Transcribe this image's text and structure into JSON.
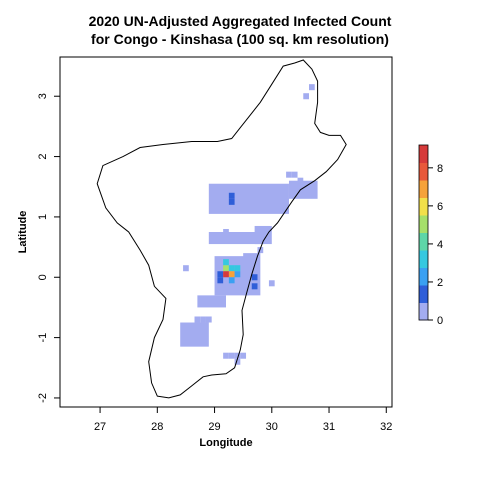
{
  "chart_data": {
    "type": "heatmap",
    "title_line1": "2020 UN-Adjusted Aggregated Infected Count",
    "title_line2": "for Congo - Kinshasa (100 sq. km resolution)",
    "xlabel": "Longitude",
    "ylabel": "Latitude",
    "xlim": [
      26.3,
      32.1
    ],
    "ylim": [
      -2.15,
      3.65
    ],
    "xticks": [
      {
        "value": 27,
        "label": "27"
      },
      {
        "value": 28,
        "label": "28"
      },
      {
        "value": 29,
        "label": "29"
      },
      {
        "value": 30,
        "label": "30"
      },
      {
        "value": 31,
        "label": "31"
      },
      {
        "value": 32,
        "label": "32"
      }
    ],
    "yticks": [
      {
        "value": -2,
        "label": "-2"
      },
      {
        "value": -1,
        "label": "-1"
      },
      {
        "value": 0,
        "label": "0"
      },
      {
        "value": 1,
        "label": "1"
      },
      {
        "value": 2,
        "label": "2"
      },
      {
        "value": 3,
        "label": "3"
      }
    ],
    "colorbar": {
      "range": [
        0,
        9.2
      ],
      "colors": [
        "#a3acf0",
        "#2f5ed8",
        "#3aa0f2",
        "#35c8e0",
        "#5ed6a8",
        "#a6e06a",
        "#f2e04a",
        "#f5a23a",
        "#e8583a",
        "#d63a3a"
      ],
      "ticks": [
        {
          "value": 0,
          "label": "0"
        },
        {
          "value": 2,
          "label": "2"
        },
        {
          "value": 4,
          "label": "4"
        },
        {
          "value": 6,
          "label": "6"
        },
        {
          "value": 8,
          "label": "8"
        }
      ]
    },
    "cells_low_count": [
      [
        30.7,
        3.15
      ],
      [
        30.6,
        3.0
      ],
      [
        30.3,
        1.7
      ],
      [
        30.4,
        1.7
      ],
      [
        30.5,
        1.6
      ],
      [
        30.6,
        1.5
      ],
      [
        30.7,
        1.5
      ],
      [
        29.2,
        0.75
      ],
      [
        29.8,
        0.45
      ],
      [
        28.5,
        0.15
      ],
      [
        30.0,
        -0.1
      ],
      [
        28.7,
        -0.7
      ],
      [
        28.8,
        -0.7
      ],
      [
        28.9,
        -0.7
      ],
      [
        29.2,
        -1.3
      ],
      [
        29.3,
        -1.3
      ],
      [
        29.4,
        -1.3
      ],
      [
        29.5,
        -1.3
      ],
      [
        29.4,
        -1.4
      ]
    ],
    "cell_blocks_low_count": [
      {
        "lon": [
          28.9,
          30.3
        ],
        "lat": [
          1.05,
          1.55
        ]
      },
      {
        "lon": [
          30.3,
          30.8
        ],
        "lat": [
          1.3,
          1.6
        ]
      },
      {
        "lon": [
          28.9,
          29.8
        ],
        "lat": [
          0.55,
          0.75
        ]
      },
      {
        "lon": [
          29.7,
          30.0
        ],
        "lat": [
          0.55,
          0.85
        ]
      },
      {
        "lon": [
          29.0,
          29.6
        ],
        "lat": [
          -0.3,
          0.35
        ]
      },
      {
        "lon": [
          28.7,
          29.2
        ],
        "lat": [
          -0.5,
          -0.3
        ]
      },
      {
        "lon": [
          29.5,
          29.8
        ],
        "lat": [
          -0.3,
          0.4
        ]
      },
      {
        "lon": [
          28.4,
          28.9
        ],
        "lat": [
          -1.15,
          -0.75
        ]
      }
    ],
    "cells_colored": [
      {
        "lon": 29.3,
        "lat": 1.25,
        "value": 1.5
      },
      {
        "lon": 29.3,
        "lat": 1.35,
        "value": 1.5
      },
      {
        "lon": 29.1,
        "lat": 0.05,
        "value": 1.5
      },
      {
        "lon": 29.1,
        "lat": -0.05,
        "value": 1.5
      },
      {
        "lon": 29.2,
        "lat": 0.15,
        "value": 5
      },
      {
        "lon": 29.3,
        "lat": 0.15,
        "value": 3
      },
      {
        "lon": 29.4,
        "lat": 0.15,
        "value": 3
      },
      {
        "lon": 29.2,
        "lat": 0.25,
        "value": 3
      },
      {
        "lon": 29.3,
        "lat": 0.05,
        "value": 6.5
      },
      {
        "lon": 29.2,
        "lat": 0.05,
        "value": 8.7
      },
      {
        "lon": 29.4,
        "lat": 0.05,
        "value": 2.5
      },
      {
        "lon": 29.3,
        "lat": -0.05,
        "value": 2.5
      },
      {
        "lon": 29.7,
        "lat": 0.0,
        "value": 1.5
      },
      {
        "lon": 29.7,
        "lat": -0.15,
        "value": 1.5
      }
    ],
    "boundary": [
      [
        28.0,
        -1.97
      ],
      [
        28.2,
        -2.0
      ],
      [
        28.4,
        -1.95
      ],
      [
        28.6,
        -1.8
      ],
      [
        28.8,
        -1.65
      ],
      [
        28.95,
        -1.62
      ],
      [
        29.2,
        -1.6
      ],
      [
        29.35,
        -1.5
      ],
      [
        29.45,
        -1.2
      ],
      [
        29.5,
        -0.95
      ],
      [
        29.48,
        -0.55
      ],
      [
        29.55,
        -0.3
      ],
      [
        29.65,
        0.05
      ],
      [
        29.75,
        0.35
      ],
      [
        29.85,
        0.6
      ],
      [
        29.95,
        0.75
      ],
      [
        30.1,
        0.9
      ],
      [
        30.35,
        1.25
      ],
      [
        30.5,
        1.45
      ],
      [
        30.75,
        1.6
      ],
      [
        30.95,
        1.75
      ],
      [
        31.15,
        1.95
      ],
      [
        31.3,
        2.2
      ],
      [
        31.2,
        2.35
      ],
      [
        31.0,
        2.35
      ],
      [
        30.85,
        2.4
      ],
      [
        30.75,
        2.55
      ],
      [
        30.8,
        2.9
      ],
      [
        30.8,
        3.25
      ],
      [
        30.7,
        3.45
      ],
      [
        30.55,
        3.6
      ],
      [
        30.4,
        3.55
      ],
      [
        30.2,
        3.5
      ],
      [
        30.0,
        3.2
      ],
      [
        29.8,
        2.9
      ],
      [
        29.55,
        2.6
      ],
      [
        29.3,
        2.3
      ],
      [
        29.05,
        2.25
      ],
      [
        28.6,
        2.25
      ],
      [
        28.1,
        2.2
      ],
      [
        27.7,
        2.15
      ],
      [
        27.4,
        2.0
      ],
      [
        27.05,
        1.85
      ],
      [
        26.95,
        1.55
      ],
      [
        27.1,
        1.15
      ],
      [
        27.3,
        0.9
      ],
      [
        27.5,
        0.75
      ],
      [
        27.7,
        0.45
      ],
      [
        27.85,
        0.2
      ],
      [
        27.95,
        -0.15
      ],
      [
        28.15,
        -0.35
      ],
      [
        28.1,
        -0.7
      ],
      [
        27.95,
        -1.0
      ],
      [
        27.85,
        -1.4
      ],
      [
        27.9,
        -1.75
      ],
      [
        28.0,
        -1.97
      ]
    ]
  }
}
